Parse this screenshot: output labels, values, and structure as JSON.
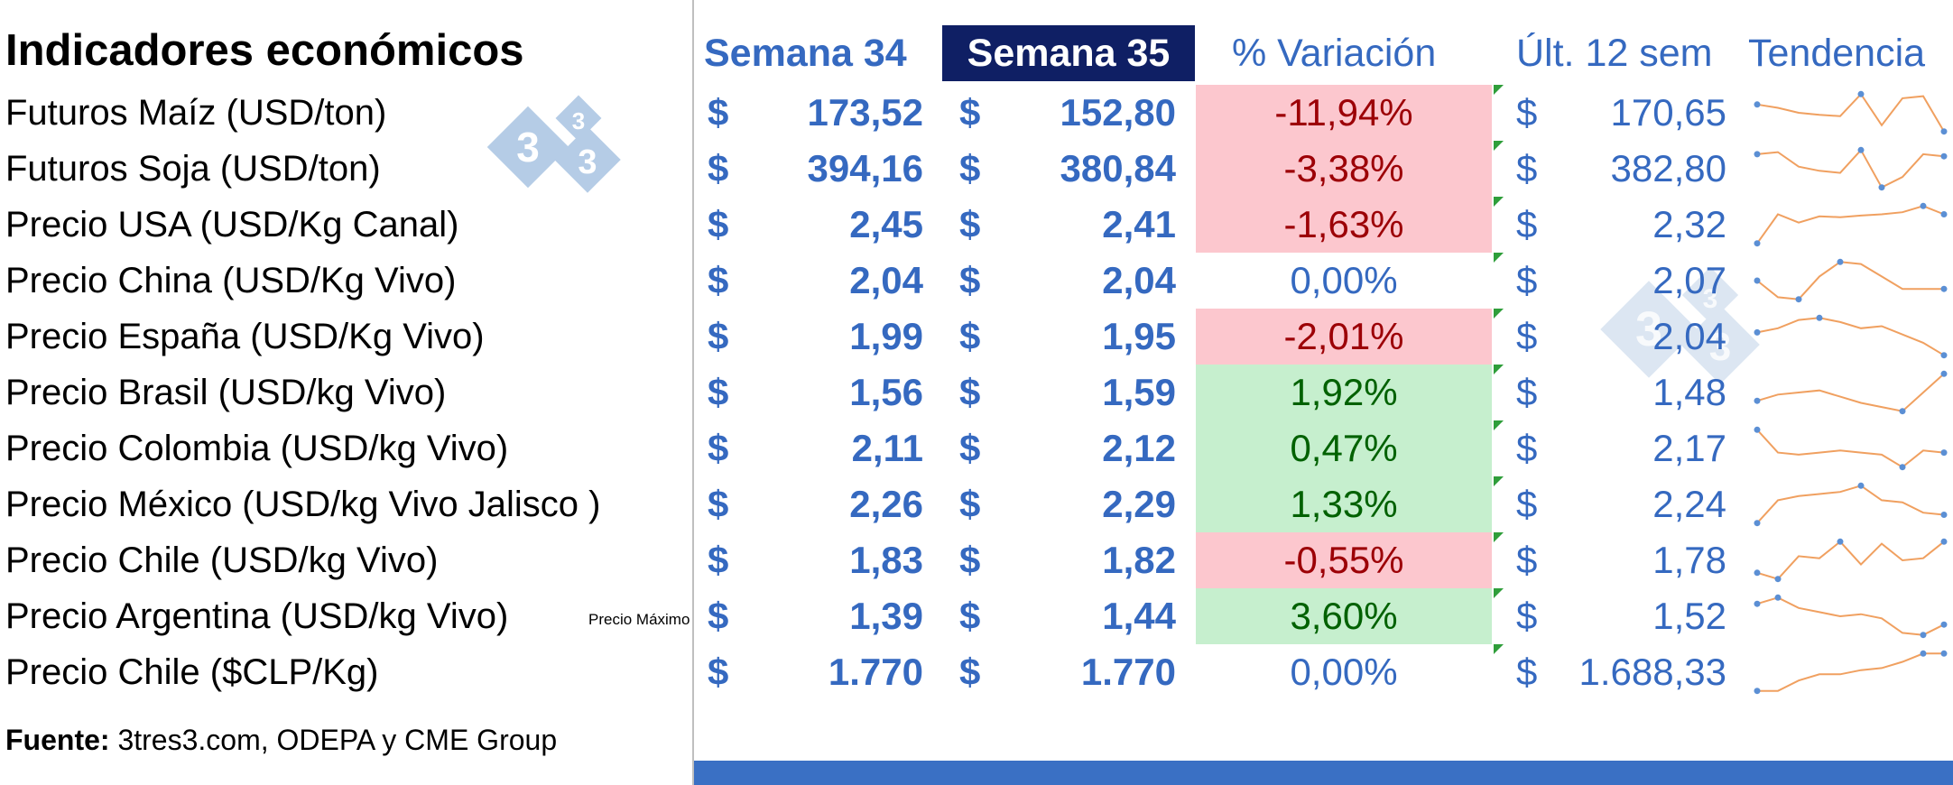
{
  "title": "Indicadores económicos",
  "headers": {
    "semana34": "Semana 34",
    "semana35": "Semana 35",
    "variacion": "% Variación",
    "ult12": "Últ. 12 sem",
    "tendencia": "Tendencia"
  },
  "watermark": "3tres3 logo",
  "colors": {
    "accent_blue": "#3569c0",
    "header_active_bg": "#0f1f64",
    "negative_bg": "#fcc7ce",
    "negative_text": "#9c0006",
    "positive_bg": "#c6efce",
    "positive_text": "#006100",
    "sparkline": "#f0a060",
    "sparkline_marker": "#5b8fd4"
  },
  "rows": [
    {
      "label": "Futuros Maíz (USD/ton)",
      "cur1": "$",
      "s34": "173,52",
      "cur2": "$",
      "s35": "152,80",
      "var": "-11,94%",
      "var_type": "neg",
      "cur3": "$",
      "ult12": "170,65",
      "extra": "",
      "trend": [
        0.7,
        0.62,
        0.5,
        0.45,
        0.42,
        0.95,
        0.2,
        0.85,
        0.9,
        0.05
      ]
    },
    {
      "label": "Futuros Soja (USD/ton)",
      "cur1": "$",
      "s34": "394,16",
      "cur2": "$",
      "s35": "380,84",
      "var": "-3,38%",
      "var_type": "neg",
      "cur3": "$",
      "ult12": "382,80",
      "extra": "",
      "trend": [
        0.85,
        0.9,
        0.55,
        0.45,
        0.4,
        0.95,
        0.05,
        0.3,
        0.85,
        0.8
      ]
    },
    {
      "label": "Precio USA (USD/Kg Canal)",
      "cur1": "$",
      "s34": "2,45",
      "cur2": "$",
      "s35": "2,41",
      "var": "-1,63%",
      "var_type": "neg",
      "cur3": "$",
      "ult12": "2,32",
      "extra": "",
      "trend": [
        0.05,
        0.75,
        0.55,
        0.7,
        0.68,
        0.72,
        0.75,
        0.8,
        0.95,
        0.75
      ]
    },
    {
      "label": "Precio China (USD/Kg Vivo)",
      "cur1": "$",
      "s34": "2,04",
      "cur2": "$",
      "s35": "2,04",
      "var": "0,00%",
      "var_type": "zero",
      "cur3": "$",
      "ult12": "2,07",
      "extra": "",
      "trend": [
        0.5,
        0.1,
        0.05,
        0.6,
        0.95,
        0.9,
        0.6,
        0.3,
        0.3,
        0.3
      ]
    },
    {
      "label": "Precio España (USD/Kg Vivo)",
      "cur1": "$",
      "s34": "1,99",
      "cur2": "$",
      "s35": "1,95",
      "var": "-2,01%",
      "var_type": "neg",
      "cur3": "$",
      "ult12": "2,04",
      "extra": "",
      "trend": [
        0.6,
        0.7,
        0.9,
        0.95,
        0.85,
        0.7,
        0.75,
        0.55,
        0.35,
        0.05
      ]
    },
    {
      "label": "Precio  Brasil (USD/kg Vivo)",
      "cur1": "$",
      "s34": "1,56",
      "cur2": "$",
      "s35": "1,59",
      "var": "1,92%",
      "var_type": "pos",
      "cur3": "$",
      "ult12": "1,48",
      "extra": "",
      "trend": [
        0.3,
        0.45,
        0.5,
        0.55,
        0.4,
        0.25,
        0.15,
        0.05,
        0.5,
        0.95
      ]
    },
    {
      "label": "Precio Colombia (USD/kg Vivo)",
      "cur1": "$",
      "s34": "2,11",
      "cur2": "$",
      "s35": "2,12",
      "var": "0,47%",
      "var_type": "pos",
      "cur3": "$",
      "ult12": "2,17",
      "extra": "",
      "trend": [
        0.95,
        0.4,
        0.35,
        0.4,
        0.45,
        0.4,
        0.35,
        0.05,
        0.45,
        0.4
      ]
    },
    {
      "label": "Precio México (USD/kg Vivo Jalisco )",
      "cur1": "$",
      "s34": "2,26",
      "cur2": "$",
      "s35": "2,29",
      "var": "1,33%",
      "var_type": "pos",
      "cur3": "$",
      "ult12": "2,24",
      "extra": "",
      "trend": [
        0.05,
        0.6,
        0.7,
        0.75,
        0.8,
        0.95,
        0.6,
        0.55,
        0.3,
        0.25
      ]
    },
    {
      "label": "Precio Chile (USD/kg Vivo)",
      "cur1": "$",
      "s34": "1,83",
      "cur2": "$",
      "s35": "1,82",
      "var": "-0,55%",
      "var_type": "neg",
      "cur3": "$",
      "ult12": "1,78",
      "extra": "",
      "trend": [
        0.2,
        0.05,
        0.6,
        0.55,
        0.95,
        0.4,
        0.9,
        0.5,
        0.55,
        0.95
      ]
    },
    {
      "label": "Precio Argentina (USD/kg Vivo)",
      "cur1": "$",
      "s34": "1,39",
      "cur2": "$",
      "s35": "1,44",
      "var": "3,60%",
      "var_type": "pos",
      "cur3": "$",
      "ult12": "1,52",
      "extra": "Precio Máximo",
      "trend": [
        0.8,
        0.95,
        0.7,
        0.6,
        0.5,
        0.55,
        0.45,
        0.1,
        0.05,
        0.3
      ]
    },
    {
      "label": "Precio Chile ($CLP/Kg)",
      "cur1": "$",
      "s34": "1.770",
      "cur2": "$",
      "s35": "1.770",
      "var": "0,00%",
      "var_type": "zero",
      "cur3": "$",
      "ult12": "1.688,33",
      "extra": "",
      "trend": [
        0.05,
        0.05,
        0.3,
        0.45,
        0.45,
        0.55,
        0.6,
        0.75,
        0.95,
        0.95
      ]
    }
  ],
  "source": {
    "label": "Fuente:",
    "text": " 3tres3.com, ODEPA y CME Group"
  }
}
